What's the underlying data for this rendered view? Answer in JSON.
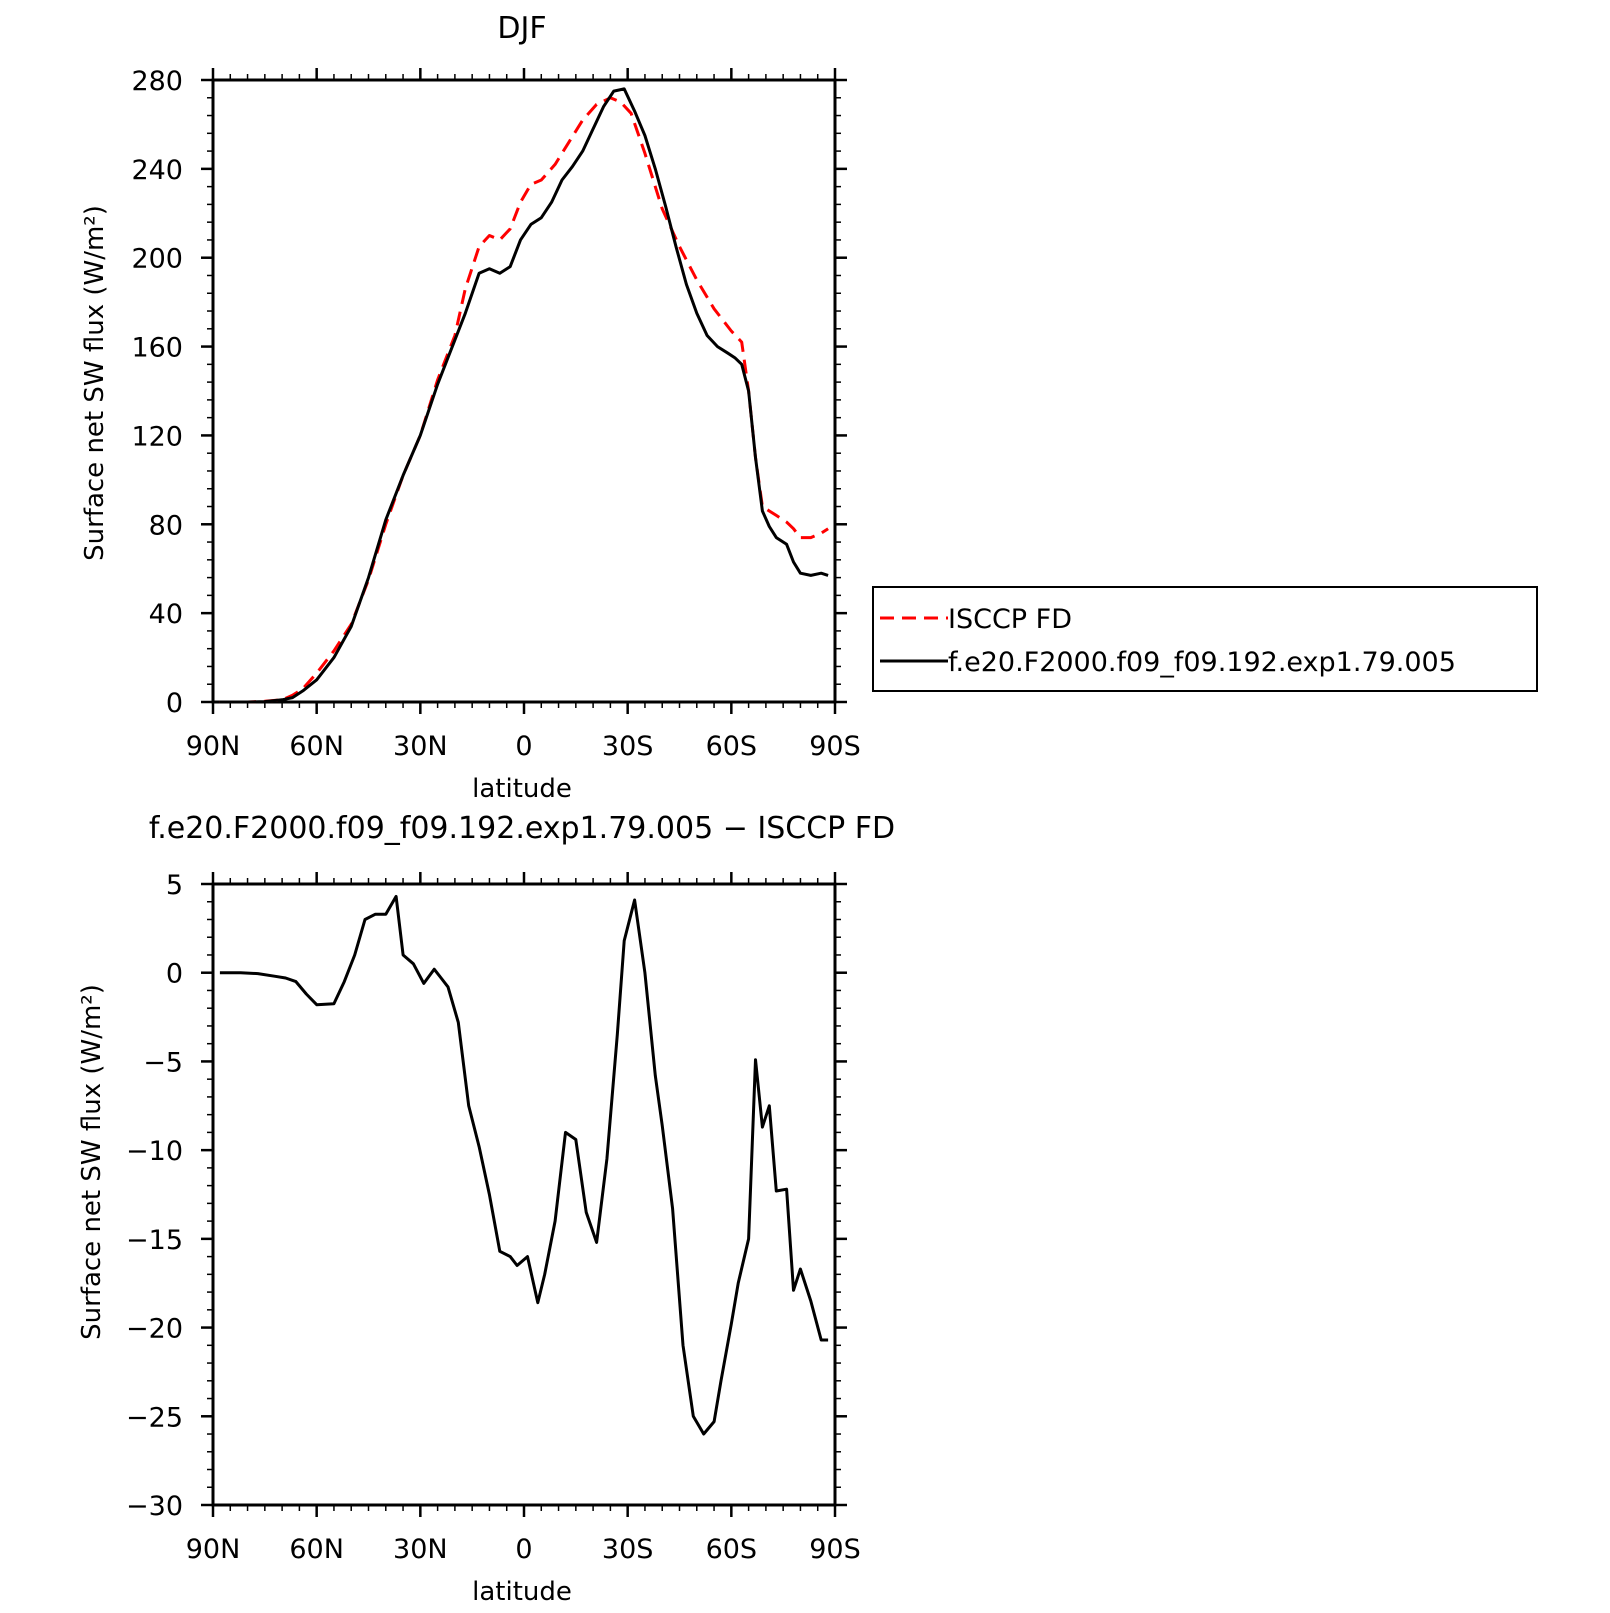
{
  "chart_data": [
    {
      "type": "line",
      "title": "DJF",
      "xlabel": "latitude",
      "ylabel": "Surface net SW flux (W/m²)",
      "xlim": [
        -90,
        90
      ],
      "ylim": [
        0,
        280
      ],
      "x_ticks": [
        {
          "value": -90,
          "label": "90N"
        },
        {
          "value": -60,
          "label": "60N"
        },
        {
          "value": -30,
          "label": "30N"
        },
        {
          "value": 0,
          "label": "0"
        },
        {
          "value": 30,
          "label": "30S"
        },
        {
          "value": 60,
          "label": "60S"
        },
        {
          "value": 90,
          "label": "90S"
        }
      ],
      "y_ticks": [
        0,
        40,
        80,
        120,
        160,
        200,
        240,
        280
      ],
      "legend": {
        "placement": "right"
      },
      "series": [
        {
          "name": "ISCCP FD",
          "color": "#ff0000",
          "style": "dashed",
          "x": [
            -88,
            -80,
            -75,
            -70,
            -67,
            -64,
            -60,
            -55,
            -50,
            -45,
            -40,
            -35,
            -30,
            -25,
            -20,
            -17,
            -13,
            -10,
            -7,
            -4,
            -1,
            2,
            5,
            9,
            13,
            17,
            21,
            25,
            28,
            31,
            35,
            40,
            45,
            50,
            55,
            60,
            63,
            65,
            67,
            69,
            71,
            73,
            76,
            78,
            80,
            83,
            86,
            88
          ],
          "y": [
            0,
            0,
            0.3,
            1,
            3,
            6,
            13,
            23,
            35,
            55,
            80,
            102,
            120,
            145,
            165,
            186,
            205,
            210,
            208,
            213,
            225,
            233,
            235,
            242,
            252,
            262,
            269,
            272,
            270,
            265,
            247,
            222,
            205,
            190,
            177,
            167,
            162,
            140,
            110,
            88,
            86,
            84,
            81,
            78,
            74,
            74,
            76,
            78
          ]
        },
        {
          "name": "f.e20.F2000.f09_f09.192.exp1.79.005",
          "color": "#000000",
          "style": "solid",
          "x": [
            -88,
            -80,
            -75,
            -70,
            -67,
            -64,
            -60,
            -55,
            -50,
            -45,
            -40,
            -35,
            -30,
            -25,
            -20,
            -17,
            -13,
            -10,
            -7,
            -4,
            -1,
            2,
            5,
            8,
            11,
            14,
            17,
            20,
            23,
            26,
            29,
            32,
            35,
            38,
            41,
            44,
            47,
            50,
            53,
            56,
            59,
            61,
            63,
            65,
            67,
            69,
            71,
            73,
            76,
            78,
            80,
            83,
            86,
            88
          ],
          "y": [
            0,
            0,
            0.2,
            1,
            2,
            5,
            10,
            20,
            34,
            56,
            82,
            102,
            120,
            143,
            163,
            175,
            193,
            195,
            193,
            196,
            208,
            215,
            218,
            225,
            235,
            241,
            248,
            258,
            268,
            275,
            276,
            266,
            255,
            240,
            223,
            205,
            188,
            175,
            165,
            160,
            157,
            155,
            152,
            140,
            110,
            86,
            79,
            74,
            71,
            63,
            58,
            57,
            58,
            57
          ]
        }
      ]
    },
    {
      "type": "line",
      "title": "f.e20.F2000.f09_f09.192.exp1.79.005 − ISCCP FD",
      "xlabel": "latitude",
      "ylabel": "Surface net SW flux (W/m²)",
      "xlim": [
        -90,
        90
      ],
      "ylim": [
        -30,
        5
      ],
      "x_ticks": [
        {
          "value": -90,
          "label": "90N"
        },
        {
          "value": -60,
          "label": "60N"
        },
        {
          "value": -30,
          "label": "30N"
        },
        {
          "value": 0,
          "label": "0"
        },
        {
          "value": 30,
          "label": "30S"
        },
        {
          "value": 60,
          "label": "60S"
        },
        {
          "value": 90,
          "label": "90S"
        }
      ],
      "y_ticks": [
        {
          "value": 5,
          "label": "5"
        },
        {
          "value": 0,
          "label": "0"
        },
        {
          "value": -5,
          "label": "−5"
        },
        {
          "value": -10,
          "label": "−10"
        },
        {
          "value": -15,
          "label": "−15"
        },
        {
          "value": -20,
          "label": "−20"
        },
        {
          "value": -25,
          "label": "−25"
        },
        {
          "value": -30,
          "label": "−30"
        }
      ],
      "series": [
        {
          "color": "#000000",
          "style": "solid",
          "x": [
            -88,
            -82,
            -77,
            -72,
            -69,
            -66,
            -63,
            -60,
            -55,
            -52,
            -49,
            -46,
            -43,
            -40,
            -37,
            -35,
            -32,
            -29,
            -26,
            -24,
            -22,
            -19,
            -16,
            -13,
            -10,
            -7,
            -4,
            -2,
            1,
            4,
            6,
            9,
            12,
            15,
            18,
            21,
            24,
            27,
            29,
            32,
            35,
            38,
            40,
            43,
            46,
            49,
            52,
            55,
            57,
            60,
            62,
            65,
            67,
            69,
            71,
            73,
            76,
            78,
            80,
            83,
            86,
            88
          ],
          "y": [
            0,
            0,
            -0.05,
            -0.2,
            -0.3,
            -0.5,
            -1.2,
            -1.8,
            -1.75,
            -0.5,
            1.0,
            3.0,
            3.3,
            3.3,
            4.3,
            1.0,
            0.5,
            -0.6,
            0.2,
            -0.3,
            -0.8,
            -2.8,
            -7.5,
            -9.8,
            -12.5,
            -15.7,
            -16.0,
            -16.5,
            -16.0,
            -18.6,
            -17.0,
            -14.0,
            -9.0,
            -9.4,
            -13.5,
            -15.2,
            -10.5,
            -3.5,
            1.8,
            4.1,
            0,
            -5.8,
            -8.6,
            -13.3,
            -21.0,
            -25.0,
            -26.0,
            -25.3,
            -23.0,
            -19.8,
            -17.5,
            -15.0,
            -4.9,
            -8.7,
            -7.5,
            -12.3,
            -12.2,
            -17.9,
            -16.7,
            -18.5,
            -20.7,
            -20.7
          ]
        }
      ]
    }
  ],
  "legend_labels": {
    "observed": "ISCCP FD",
    "model": "f.e20.F2000.f09_f09.192.exp1.79.005"
  }
}
